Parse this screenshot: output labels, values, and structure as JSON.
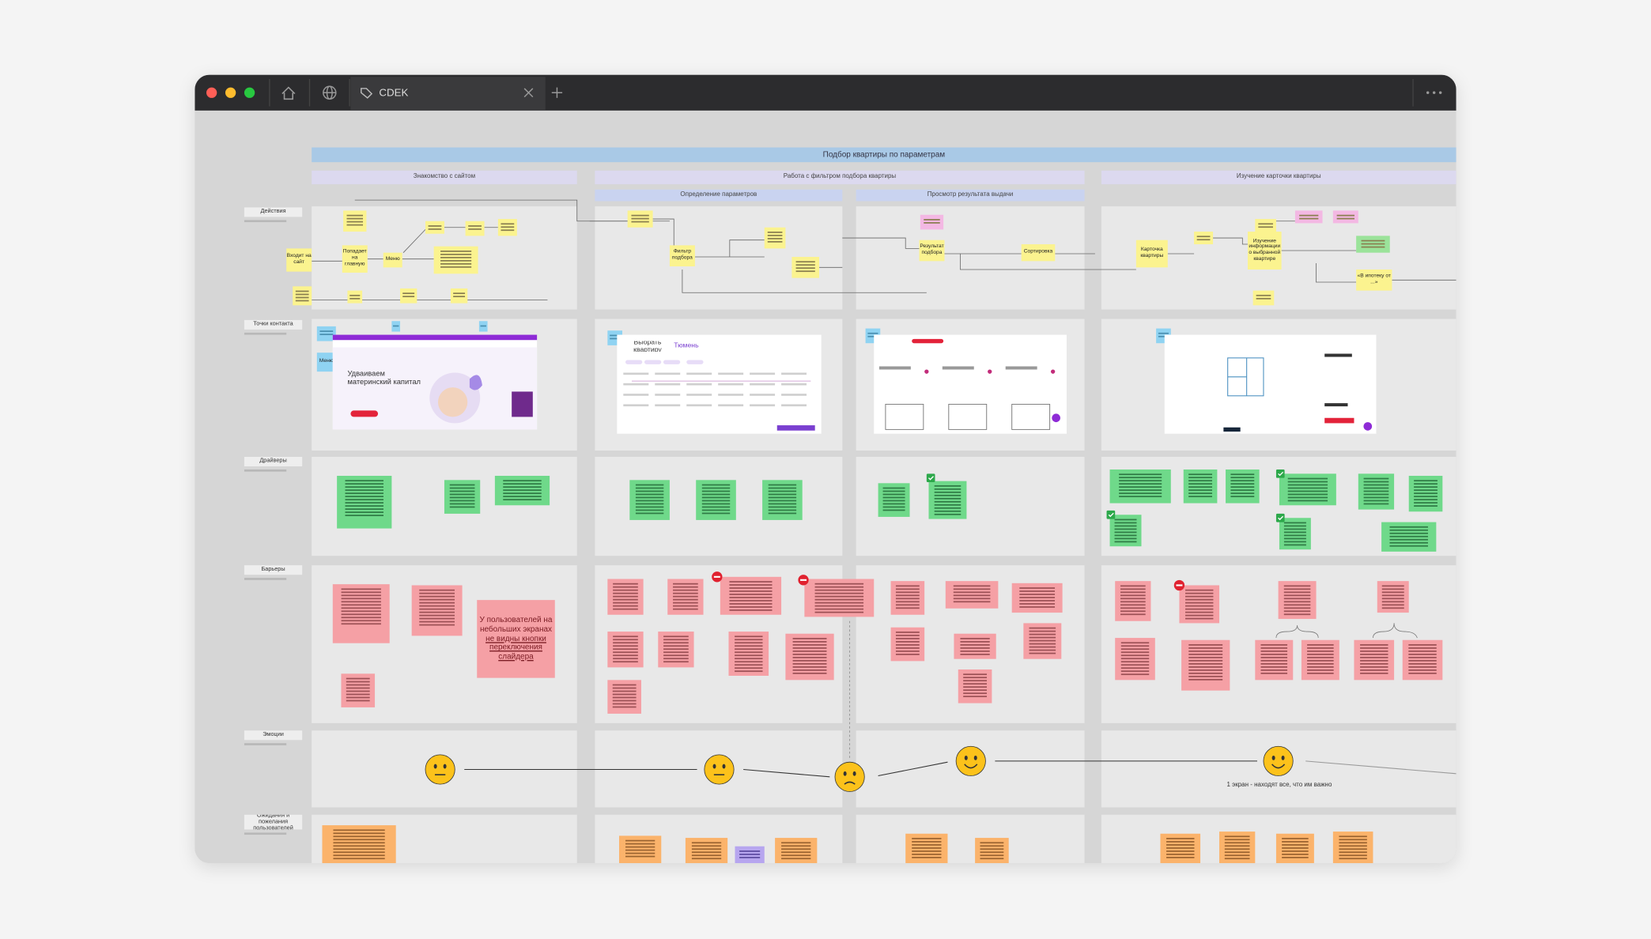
{
  "browser": {
    "tab_title": "CDEK"
  },
  "board": {
    "title": "Подбор квартиры по параметрам",
    "phases": [
      "Знакомство с сайтом",
      "Работа с фильтром подбора квартиры",
      "Изучение карточки квартиры"
    ],
    "subphases": [
      "Определение параметров",
      "Просмотр результата выдачи"
    ],
    "rows": [
      "Действия",
      "Точки контакта",
      "Драйверы",
      "Барьеры",
      "Эмоции",
      "Ожидания и пожелания пользователей"
    ],
    "actions": [
      "Входит на сайт",
      "Попадает на главную",
      "Меню",
      "Фильтр подбора",
      "Результат подбора",
      "Сортировка",
      "Карточка квартиры",
      "Изучение информации о выбранной квартире",
      "«В ипотеку от ...»"
    ],
    "touchpoints": {
      "menu_label": "Меню",
      "hero_title": "Удваиваем материнский капитал",
      "filter_title": "Выбрать квартиру",
      "city": "Тюмень"
    },
    "barrier_note": {
      "text": "У пользователей на небольших экранах",
      "underlined": "не видны кнопки переключения слайдера"
    },
    "emotion_note": "1 экран - находят все, что им важно"
  }
}
